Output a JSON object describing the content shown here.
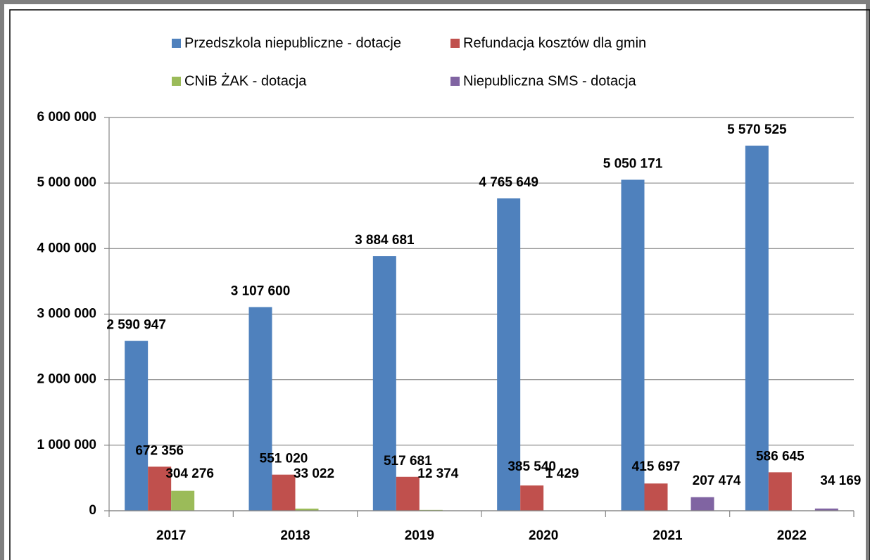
{
  "chart_data": {
    "type": "bar",
    "categories": [
      "2017",
      "2018",
      "2019",
      "2020",
      "2021",
      "2022"
    ],
    "series": [
      {
        "name": "Przedszkola niepubliczne - dotacje",
        "color": "#4f81bd",
        "values": [
          2590947,
          3107600,
          3884681,
          4765649,
          5050171,
          5570525
        ],
        "value_labels": [
          "2 590 947",
          "3 107 600",
          "3 884 681",
          "4 765 649",
          "5 050 171",
          "5 570 525"
        ]
      },
      {
        "name": "Refundacja kosztów dla gmin",
        "color": "#c0504d",
        "values": [
          672356,
          551020,
          517681,
          385540,
          415697,
          586645
        ],
        "value_labels": [
          "672 356",
          "551 020",
          "517 681",
          "385 540",
          "415 697",
          "586 645"
        ]
      },
      {
        "name": "CNiB ŻAK - dotacja",
        "color": "#9bbb59",
        "values": [
          304276,
          33022,
          12374,
          1429,
          null,
          null
        ],
        "value_labels": [
          "304 276",
          "33 022",
          "12 374",
          "1 429",
          null,
          null
        ]
      },
      {
        "name": "Niepubliczna SMS - dotacja",
        "color": "#8064a2",
        "values": [
          null,
          null,
          null,
          null,
          207474,
          34169
        ],
        "value_labels": [
          null,
          null,
          null,
          null,
          "207 474",
          "34 169"
        ]
      }
    ],
    "ylim": [
      0,
      6000000
    ],
    "yticks": [
      {
        "value": 0,
        "label": "0"
      },
      {
        "value": 1000000,
        "label": "1 000 000"
      },
      {
        "value": 2000000,
        "label": "2 000 000"
      },
      {
        "value": 3000000,
        "label": "3 000 000"
      },
      {
        "value": 4000000,
        "label": "4 000 000"
      },
      {
        "value": 5000000,
        "label": "5 000 000"
      },
      {
        "value": 6000000,
        "label": "6 000 000"
      }
    ],
    "grid": true,
    "legend": "top"
  }
}
